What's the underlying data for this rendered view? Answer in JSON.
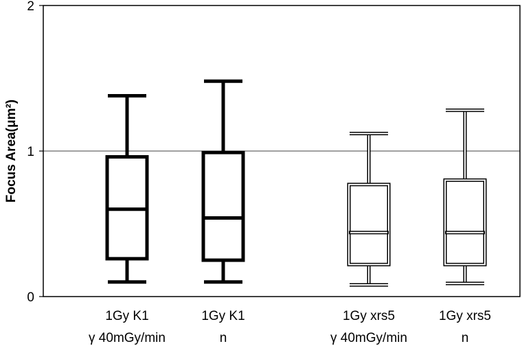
{
  "chart_data": {
    "type": "boxplot",
    "title": "",
    "xlabel": "",
    "ylabel": "Focus Area(μm²)",
    "ylim": [
      0,
      2
    ],
    "yticks": [
      0,
      1,
      2
    ],
    "ytick_labels": [
      "0",
      "1",
      "2"
    ],
    "reference_line": 1,
    "grid": false,
    "series": [
      {
        "label_line1": "1Gy K1",
        "label_line2": "γ 40mGy/min",
        "style": "bold",
        "min": 0.1,
        "q1": 0.26,
        "median": 0.6,
        "q3": 0.96,
        "max": 1.38
      },
      {
        "label_line1": "1Gy K1",
        "label_line2": "n",
        "style": "bold",
        "min": 0.1,
        "q1": 0.25,
        "median": 0.54,
        "q3": 0.99,
        "max": 1.48
      },
      {
        "label_line1": "1Gy xrs5",
        "label_line2": "γ 40mGy/min",
        "style": "outline",
        "min": 0.08,
        "q1": 0.22,
        "median": 0.44,
        "q3": 0.77,
        "max": 1.12
      },
      {
        "label_line1": "1Gy xrs5",
        "label_line2": "n",
        "style": "outline",
        "min": 0.09,
        "q1": 0.22,
        "median": 0.44,
        "q3": 0.8,
        "max": 1.28
      }
    ]
  }
}
